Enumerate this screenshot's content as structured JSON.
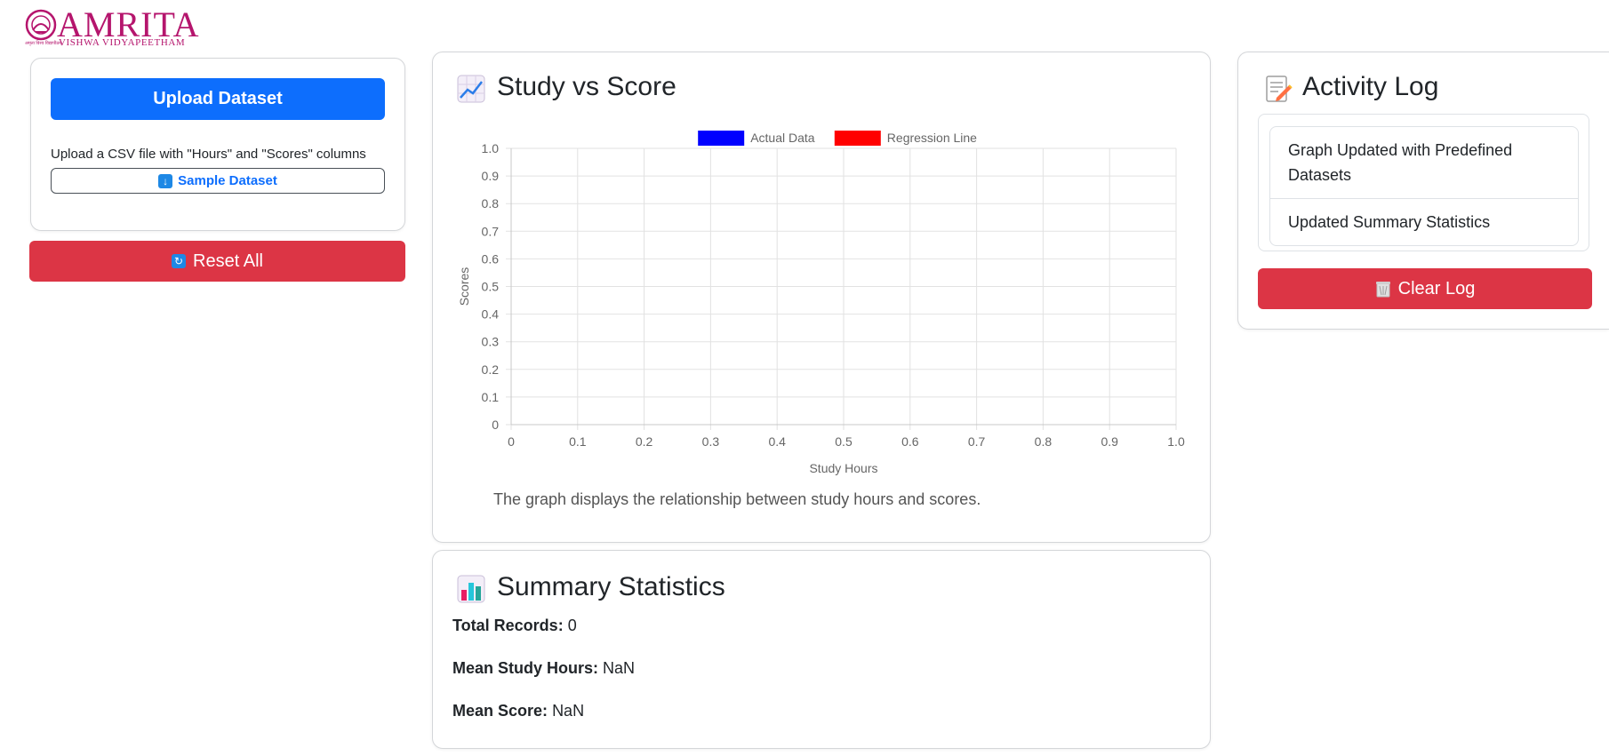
{
  "brand": {
    "name": "AMRITA",
    "subtitle": "VISHWA VIDYAPEETHAM",
    "tagline": "अमृता विश्व विद्यापीठम्"
  },
  "upload": {
    "button_label": "Upload Dataset",
    "hint": "Upload a CSV file with \"Hours\" and \"Scores\" columns",
    "sample_label": "Sample Dataset",
    "sample_icon": "download-arrow-icon"
  },
  "reset": {
    "label": "Reset All",
    "icon": "refresh-icon"
  },
  "chart_card": {
    "title": "Study vs Score",
    "icon": "chart-increasing-icon",
    "caption": "The graph displays the relationship between study hours and scores."
  },
  "chart_data": {
    "type": "scatter",
    "title": "",
    "xlabel": "Study Hours",
    "ylabel": "Scores",
    "xlim": [
      0,
      1
    ],
    "ylim": [
      0,
      1
    ],
    "x_ticks": [
      "0",
      "0.1",
      "0.2",
      "0.3",
      "0.4",
      "0.5",
      "0.6",
      "0.7",
      "0.8",
      "0.9",
      "1.0"
    ],
    "y_ticks": [
      "0",
      "0.1",
      "0.2",
      "0.3",
      "0.4",
      "0.5",
      "0.6",
      "0.7",
      "0.8",
      "0.9",
      "1.0"
    ],
    "grid": true,
    "legend_position": "top-center",
    "series": [
      {
        "name": "Actual Data",
        "color": "#0000ff",
        "x": [],
        "y": []
      },
      {
        "name": "Regression Line",
        "color": "#ff0000",
        "x": [],
        "y": []
      }
    ]
  },
  "summary": {
    "title": "Summary Statistics",
    "icon": "bar-chart-icon",
    "total_label": "Total Records:",
    "total_value": "0",
    "mean_hours_label": "Mean Study Hours:",
    "mean_hours_value": "NaN",
    "mean_score_label": "Mean Score:",
    "mean_score_value": "NaN"
  },
  "activity": {
    "title": "Activity Log",
    "icon": "memo-icon",
    "items": [
      {
        "text": "Graph Updated with Predefined Datasets"
      },
      {
        "text": "Updated Summary Statistics"
      }
    ],
    "clear_label": "Clear Log",
    "clear_icon": "wastebasket-icon"
  },
  "colors": {
    "primary": "#0d6efd",
    "danger": "#dc3545",
    "brand": "#b5156d"
  }
}
